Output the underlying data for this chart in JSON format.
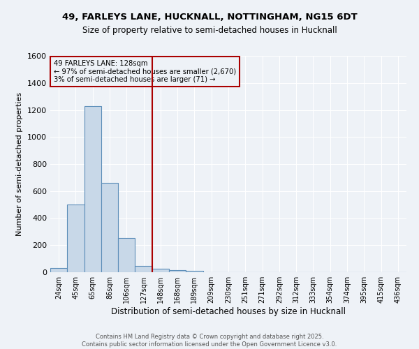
{
  "title_line1": "49, FARLEYS LANE, HUCKNALL, NOTTINGHAM, NG15 6DT",
  "title_line2": "Size of property relative to semi-detached houses in Hucknall",
  "xlabel": "Distribution of semi-detached houses by size in Hucknall",
  "ylabel": "Number of semi-detached properties",
  "categories": [
    "24sqm",
    "45sqm",
    "65sqm",
    "86sqm",
    "106sqm",
    "127sqm",
    "148sqm",
    "168sqm",
    "189sqm",
    "209sqm",
    "230sqm",
    "251sqm",
    "271sqm",
    "292sqm",
    "312sqm",
    "333sqm",
    "354sqm",
    "374sqm",
    "395sqm",
    "415sqm",
    "436sqm"
  ],
  "values": [
    30,
    500,
    1230,
    660,
    255,
    45,
    25,
    15,
    10,
    0,
    0,
    0,
    0,
    0,
    0,
    0,
    0,
    0,
    0,
    0,
    0
  ],
  "bar_color": "#c8d8e8",
  "bar_edge_color": "#5b8db8",
  "vline_x": 5.5,
  "vline_color": "#aa0000",
  "annotation_title": "49 FARLEYS LANE: 128sqm",
  "annotation_line1": "← 97% of semi-detached houses are smaller (2,670)",
  "annotation_line2": "3% of semi-detached houses are larger (71) →",
  "annotation_box_color": "#aa0000",
  "ylim": [
    0,
    1600
  ],
  "yticks": [
    0,
    200,
    400,
    600,
    800,
    1000,
    1200,
    1400,
    1600
  ],
  "footer_line1": "Contains HM Land Registry data © Crown copyright and database right 2025.",
  "footer_line2": "Contains public sector information licensed under the Open Government Licence v3.0.",
  "bg_color": "#eef2f7",
  "grid_color": "#ffffff"
}
